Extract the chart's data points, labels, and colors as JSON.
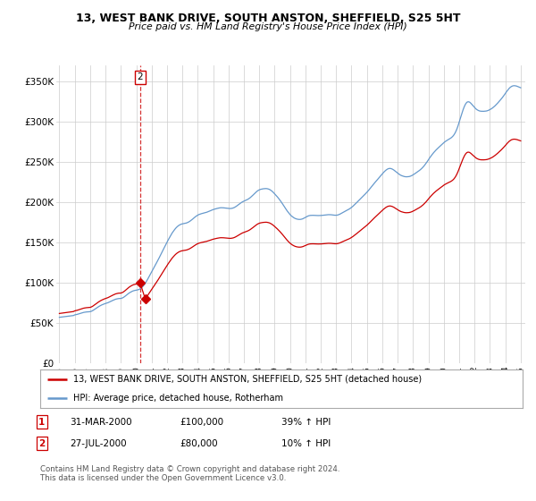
{
  "title": "13, WEST BANK DRIVE, SOUTH ANSTON, SHEFFIELD, S25 5HT",
  "subtitle": "Price paid vs. HM Land Registry's House Price Index (HPI)",
  "legend_line1": "13, WEST BANK DRIVE, SOUTH ANSTON, SHEFFIELD, S25 5HT (detached house)",
  "legend_line2": "HPI: Average price, detached house, Rotherham",
  "transaction1_date": "31-MAR-2000",
  "transaction1_price": "£100,000",
  "transaction1_hpi": "39% ↑ HPI",
  "transaction2_date": "27-JUL-2000",
  "transaction2_price": "£80,000",
  "transaction2_hpi": "10% ↑ HPI",
  "footer": "Contains HM Land Registry data © Crown copyright and database right 2024.\nThis data is licensed under the Open Government Licence v3.0.",
  "red_color": "#cc0000",
  "blue_color": "#6699cc",
  "background_color": "#ffffff",
  "grid_color": "#cccccc",
  "ylim": [
    0,
    370000
  ],
  "yticks": [
    0,
    50000,
    100000,
    150000,
    200000,
    250000,
    300000,
    350000
  ],
  "ytick_labels": [
    "£0",
    "£50K",
    "£100K",
    "£150K",
    "£200K",
    "£250K",
    "£300K",
    "£350K"
  ],
  "t1_year": 2000.25,
  "t1_price": 100000,
  "t2_year": 2000.583,
  "t2_price": 80000,
  "hpi_x": [
    1995.0,
    1995.083,
    1995.167,
    1995.25,
    1995.333,
    1995.417,
    1995.5,
    1995.583,
    1995.667,
    1995.75,
    1995.833,
    1995.917,
    1996.0,
    1996.083,
    1996.167,
    1996.25,
    1996.333,
    1996.417,
    1996.5,
    1996.583,
    1996.667,
    1996.75,
    1996.833,
    1996.917,
    1997.0,
    1997.083,
    1997.167,
    1997.25,
    1997.333,
    1997.417,
    1997.5,
    1997.583,
    1997.667,
    1997.75,
    1997.833,
    1997.917,
    1998.0,
    1998.083,
    1998.167,
    1998.25,
    1998.333,
    1998.417,
    1998.5,
    1998.583,
    1998.667,
    1998.75,
    1998.833,
    1998.917,
    1999.0,
    1999.083,
    1999.167,
    1999.25,
    1999.333,
    1999.417,
    1999.5,
    1999.583,
    1999.667,
    1999.75,
    1999.833,
    1999.917,
    2000.0,
    2000.083,
    2000.167,
    2000.25,
    2000.333,
    2000.417,
    2000.5,
    2000.583,
    2000.667,
    2000.75,
    2000.833,
    2000.917,
    2001.0,
    2001.083,
    2001.167,
    2001.25,
    2001.333,
    2001.417,
    2001.5,
    2001.583,
    2001.667,
    2001.75,
    2001.833,
    2001.917,
    2002.0,
    2002.083,
    2002.167,
    2002.25,
    2002.333,
    2002.417,
    2002.5,
    2002.583,
    2002.667,
    2002.75,
    2002.833,
    2002.917,
    2003.0,
    2003.083,
    2003.167,
    2003.25,
    2003.333,
    2003.417,
    2003.5,
    2003.583,
    2003.667,
    2003.75,
    2003.833,
    2003.917,
    2004.0,
    2004.083,
    2004.167,
    2004.25,
    2004.333,
    2004.417,
    2004.5,
    2004.583,
    2004.667,
    2004.75,
    2004.833,
    2004.917,
    2005.0,
    2005.083,
    2005.167,
    2005.25,
    2005.333,
    2005.417,
    2005.5,
    2005.583,
    2005.667,
    2005.75,
    2005.833,
    2005.917,
    2006.0,
    2006.083,
    2006.167,
    2006.25,
    2006.333,
    2006.417,
    2006.5,
    2006.583,
    2006.667,
    2006.75,
    2006.833,
    2006.917,
    2007.0,
    2007.083,
    2007.167,
    2007.25,
    2007.333,
    2007.417,
    2007.5,
    2007.583,
    2007.667,
    2007.75,
    2007.833,
    2007.917,
    2008.0,
    2008.083,
    2008.167,
    2008.25,
    2008.333,
    2008.417,
    2008.5,
    2008.583,
    2008.667,
    2008.75,
    2008.833,
    2008.917,
    2009.0,
    2009.083,
    2009.167,
    2009.25,
    2009.333,
    2009.417,
    2009.5,
    2009.583,
    2009.667,
    2009.75,
    2009.833,
    2009.917,
    2010.0,
    2010.083,
    2010.167,
    2010.25,
    2010.333,
    2010.417,
    2010.5,
    2010.583,
    2010.667,
    2010.75,
    2010.833,
    2010.917,
    2011.0,
    2011.083,
    2011.167,
    2011.25,
    2011.333,
    2011.417,
    2011.5,
    2011.583,
    2011.667,
    2011.75,
    2011.833,
    2011.917,
    2012.0,
    2012.083,
    2012.167,
    2012.25,
    2012.333,
    2012.417,
    2012.5,
    2012.583,
    2012.667,
    2012.75,
    2012.833,
    2012.917,
    2013.0,
    2013.083,
    2013.167,
    2013.25,
    2013.333,
    2013.417,
    2013.5,
    2013.583,
    2013.667,
    2013.75,
    2013.833,
    2013.917,
    2014.0,
    2014.083,
    2014.167,
    2014.25,
    2014.333,
    2014.417,
    2014.5,
    2014.583,
    2014.667,
    2014.75,
    2014.833,
    2014.917,
    2015.0,
    2015.083,
    2015.167,
    2015.25,
    2015.333,
    2015.417,
    2015.5,
    2015.583,
    2015.667,
    2015.75,
    2015.833,
    2015.917,
    2016.0,
    2016.083,
    2016.167,
    2016.25,
    2016.333,
    2016.417,
    2016.5,
    2016.583,
    2016.667,
    2016.75,
    2016.833,
    2016.917,
    2017.0,
    2017.083,
    2017.167,
    2017.25,
    2017.333,
    2017.417,
    2017.5,
    2017.583,
    2017.667,
    2017.75,
    2017.833,
    2017.917,
    2018.0,
    2018.083,
    2018.167,
    2018.25,
    2018.333,
    2018.417,
    2018.5,
    2018.583,
    2018.667,
    2018.75,
    2018.833,
    2018.917,
    2019.0,
    2019.083,
    2019.167,
    2019.25,
    2019.333,
    2019.417,
    2019.5,
    2019.583,
    2019.667,
    2019.75,
    2019.833,
    2019.917,
    2020.0,
    2020.083,
    2020.167,
    2020.25,
    2020.333,
    2020.417,
    2020.5,
    2020.583,
    2020.667,
    2020.75,
    2020.833,
    2020.917,
    2021.0,
    2021.083,
    2021.167,
    2021.25,
    2021.333,
    2021.417,
    2021.5,
    2021.583,
    2021.667,
    2021.75,
    2021.833,
    2021.917,
    2022.0,
    2022.083,
    2022.167,
    2022.25,
    2022.333,
    2022.417,
    2022.5,
    2022.583,
    2022.667,
    2022.75,
    2022.833,
    2022.917,
    2023.0,
    2023.083,
    2023.167,
    2023.25,
    2023.333,
    2023.417,
    2023.5,
    2023.583,
    2023.667,
    2023.75,
    2023.833,
    2023.917,
    2024.0,
    2024.083,
    2024.167,
    2024.25,
    2024.333,
    2024.417,
    2024.5,
    2024.583,
    2024.667,
    2024.75,
    2024.833,
    2024.917,
    2025.0
  ],
  "hpi_y": [
    57000,
    57200,
    57400,
    57600,
    57800,
    58000,
    58200,
    58400,
    58600,
    58800,
    59000,
    59200,
    60000,
    60300,
    60700,
    61200,
    61700,
    62200,
    62700,
    63100,
    63400,
    63600,
    63700,
    63800,
    64000,
    64500,
    65300,
    66300,
    67400,
    68500,
    69600,
    70600,
    71500,
    72300,
    73000,
    73600,
    74100,
    74600,
    75200,
    75900,
    76700,
    77500,
    78200,
    78900,
    79500,
    79900,
    80200,
    80300,
    80400,
    80900,
    81700,
    82800,
    84100,
    85400,
    86600,
    87700,
    88600,
    89400,
    90000,
    90400,
    90700,
    91000,
    91500,
    92300,
    93500,
    95000,
    96900,
    99100,
    101700,
    104500,
    107500,
    110500,
    113400,
    116300,
    119200,
    122100,
    125100,
    128100,
    131200,
    134300,
    137500,
    140700,
    143900,
    147100,
    150200,
    153200,
    156100,
    158900,
    161600,
    163900,
    166000,
    167900,
    169500,
    170800,
    171800,
    172500,
    173000,
    173300,
    173600,
    174000,
    174600,
    175400,
    176400,
    177600,
    178900,
    180300,
    181600,
    182800,
    183800,
    184600,
    185200,
    185700,
    186100,
    186500,
    186900,
    187400,
    188000,
    188700,
    189400,
    190100,
    190700,
    191200,
    191700,
    192100,
    192500,
    192800,
    193000,
    193000,
    192900,
    192700,
    192500,
    192300,
    192100,
    192000,
    192100,
    192400,
    192900,
    193700,
    194700,
    195900,
    197100,
    198300,
    199400,
    200400,
    201200,
    201900,
    202600,
    203400,
    204400,
    205600,
    207000,
    208500,
    210100,
    211700,
    213100,
    214300,
    215200,
    215800,
    216200,
    216500,
    216700,
    216800,
    216700,
    216300,
    215700,
    214700,
    213500,
    212000,
    210300,
    208500,
    206700,
    204800,
    202700,
    200500,
    198200,
    195800,
    193300,
    190900,
    188600,
    186500,
    184600,
    183000,
    181700,
    180600,
    179700,
    179100,
    178700,
    178500,
    178500,
    178800,
    179300,
    180100,
    181000,
    181900,
    182700,
    183200,
    183500,
    183600,
    183600,
    183500,
    183400,
    183300,
    183300,
    183300,
    183400,
    183500,
    183700,
    183900,
    184100,
    184300,
    184400,
    184400,
    184300,
    184100,
    183900,
    183700,
    183700,
    183900,
    184400,
    185100,
    186000,
    186900,
    187800,
    188700,
    189500,
    190300,
    191200,
    192200,
    193400,
    194700,
    196200,
    197700,
    199300,
    200900,
    202500,
    204100,
    205700,
    207300,
    208900,
    210500,
    212200,
    214000,
    215900,
    217900,
    219900,
    221900,
    223800,
    225700,
    227500,
    229300,
    231200,
    233100,
    235000,
    236800,
    238400,
    239800,
    240900,
    241600,
    241800,
    241500,
    240800,
    239800,
    238600,
    237300,
    236000,
    234800,
    233700,
    232900,
    232300,
    231800,
    231500,
    231400,
    231500,
    231700,
    232200,
    232900,
    233800,
    234800,
    235900,
    237000,
    238100,
    239300,
    240600,
    242100,
    243800,
    245700,
    247800,
    250100,
    252500,
    254900,
    257100,
    259200,
    261200,
    263000,
    264700,
    266300,
    267800,
    269300,
    270800,
    272300,
    273700,
    275000,
    276100,
    277100,
    278000,
    279000,
    280100,
    281600,
    283600,
    286300,
    289800,
    294100,
    299000,
    304300,
    309500,
    314300,
    318500,
    321800,
    323900,
    324600,
    324200,
    322900,
    321100,
    319200,
    317400,
    315800,
    314600,
    313700,
    313100,
    312800,
    312700,
    312700,
    312800,
    313000,
    313400,
    314000,
    314800,
    315700,
    316800,
    318100,
    319500,
    321100,
    322800,
    324600,
    326400,
    328300,
    330300,
    332500,
    334800,
    337100,
    339200,
    341100,
    342600,
    343700,
    344300,
    344500,
    344300,
    343900,
    343300,
    342600,
    341900
  ]
}
